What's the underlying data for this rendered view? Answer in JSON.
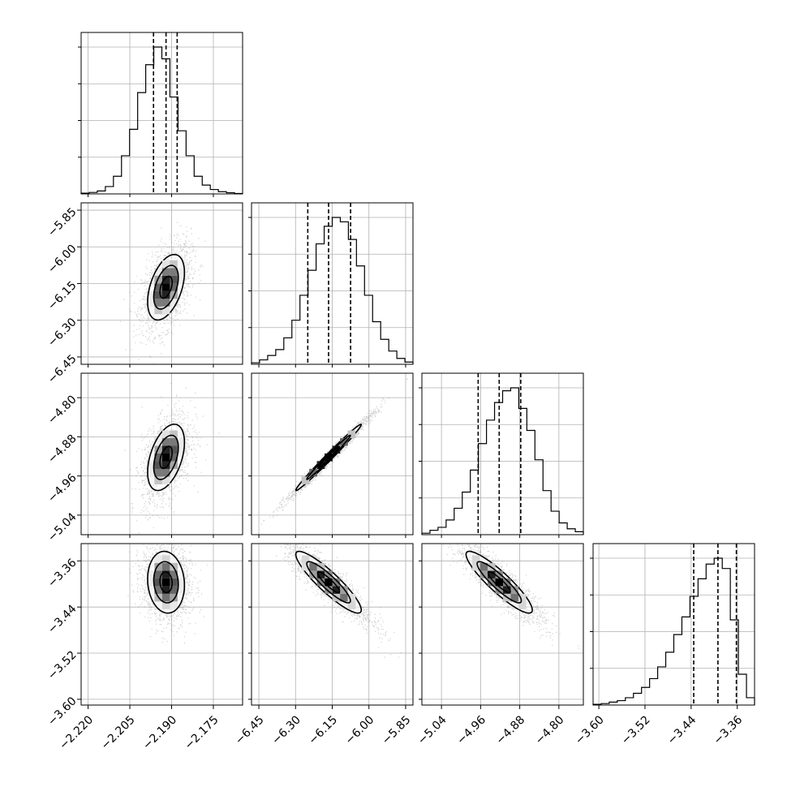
{
  "chart_data": {
    "type": "corner",
    "title": "",
    "parameters": [
      {
        "range": [
          -2.2225,
          -2.1645
        ],
        "ticks": [
          {
            "value": -2.22,
            "label": "−2.220"
          },
          {
            "value": -2.205,
            "label": "−2.205"
          },
          {
            "value": -2.19,
            "label": "−2.190"
          },
          {
            "value": -2.175,
            "label": "−2.175"
          }
        ],
        "quantiles": [
          -2.1965,
          -2.192,
          -2.188
        ],
        "mean": -2.192,
        "sigma": 0.0042,
        "hist": [
          0.005,
          0.01,
          0.02,
          0.05,
          0.12,
          0.26,
          0.44,
          0.69,
          0.88,
          1.0,
          0.92,
          0.66,
          0.43,
          0.26,
          0.12,
          0.06,
          0.03,
          0.015,
          0.008,
          0.003
        ]
      },
      {
        "range": [
          -6.48,
          -5.82
        ],
        "ticks": [
          {
            "value": -6.45,
            "label": "−6.45"
          },
          {
            "value": -6.3,
            "label": "−6.30"
          },
          {
            "value": -6.15,
            "label": "−6.15"
          },
          {
            "value": -6.0,
            "label": "−6.00"
          },
          {
            "value": -5.85,
            "label": "−5.85"
          }
        ],
        "quantiles": [
          -6.25,
          -6.165,
          -6.075
        ],
        "mean": -6.165,
        "sigma": 0.085,
        "hist": [
          0.01,
          0.03,
          0.06,
          0.1,
          0.18,
          0.3,
          0.47,
          0.64,
          0.82,
          0.94,
          1.0,
          0.97,
          0.85,
          0.67,
          0.47,
          0.29,
          0.17,
          0.09,
          0.04,
          0.015
        ]
      },
      {
        "range": [
          -5.08,
          -4.75
        ],
        "ticks": [
          {
            "value": -5.04,
            "label": "−5.04"
          },
          {
            "value": -4.96,
            "label": "−4.96"
          },
          {
            "value": -4.88,
            "label": "−4.88"
          },
          {
            "value": -4.8,
            "label": "−4.80"
          }
        ],
        "quantiles": [
          -4.965,
          -4.922,
          -4.878
        ],
        "mean": -4.922,
        "sigma": 0.043,
        "hist": [
          0.01,
          0.03,
          0.05,
          0.1,
          0.18,
          0.29,
          0.44,
          0.62,
          0.78,
          0.9,
          0.98,
          1.0,
          0.86,
          0.71,
          0.51,
          0.3,
          0.16,
          0.08,
          0.04,
          0.02
        ]
      },
      {
        "range": [
          -3.61,
          -3.33
        ],
        "ticks": [
          {
            "value": -3.6,
            "label": "−3.60"
          },
          {
            "value": -3.52,
            "label": "−3.52"
          },
          {
            "value": -3.44,
            "label": "−3.44"
          },
          {
            "value": -3.36,
            "label": "−3.36"
          }
        ],
        "quantiles": [
          -3.4355,
          -3.3935,
          -3.3615
        ],
        "mean": -3.397,
        "sigma": 0.034,
        "hist": [
          0.005,
          0.01,
          0.02,
          0.03,
          0.05,
          0.08,
          0.12,
          0.18,
          0.26,
          0.36,
          0.48,
          0.6,
          0.74,
          0.86,
          0.96,
          1.0,
          0.93,
          0.58,
          0.21,
          0.05
        ]
      }
    ],
    "pairs": [
      {
        "row": 1,
        "col": 0,
        "corr": 0.45,
        "density_peak": [
          -2.192,
          -6.165
        ]
      },
      {
        "row": 2,
        "col": 0,
        "corr": 0.45,
        "density_peak": [
          -2.192,
          -4.922
        ]
      },
      {
        "row": 2,
        "col": 1,
        "corr": 0.99,
        "density_peak": [
          -6.165,
          -4.922
        ]
      },
      {
        "row": 3,
        "col": 0,
        "corr": -0.1,
        "density_peak": [
          -2.192,
          -3.397
        ]
      },
      {
        "row": 3,
        "col": 1,
        "corr": -0.9,
        "density_peak": [
          -6.165,
          -3.397
        ]
      },
      {
        "row": 3,
        "col": 2,
        "corr": -0.9,
        "density_peak": [
          -4.922,
          -3.397
        ]
      }
    ],
    "contour_levels": [
      0.5,
      1.0,
      1.5
    ],
    "grid": true,
    "colors": {
      "hist": "#000000",
      "contour": "#000000",
      "density": "#000000",
      "points": "#7f7f7f",
      "grid": "#b0b0b0"
    }
  }
}
